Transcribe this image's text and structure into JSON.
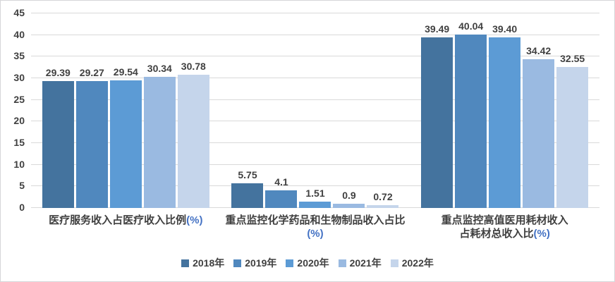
{
  "chart_data": {
    "type": "bar",
    "categories": [
      {
        "text": "医疗服务收入占医疗收入比例",
        "suffix": "(%)",
        "suffix_on_new_line": false
      },
      {
        "text": "重点监控化学药品和生物制品收入占比",
        "suffix": "(%)",
        "suffix_on_new_line": true
      },
      {
        "text": "重点监控高值医用耗材收入\n占耗材总收入比",
        "suffix": "(%)",
        "suffix_on_new_line": false
      }
    ],
    "series": [
      {
        "name": "2018年",
        "color": "#44739E",
        "values": [
          29.39,
          5.75,
          39.49
        ],
        "labels": [
          "29.39",
          "5.75",
          "39.49"
        ]
      },
      {
        "name": "2019年",
        "color": "#5088BE",
        "values": [
          29.27,
          4.1,
          40.04
        ],
        "labels": [
          "29.27",
          "4.1",
          "40.04"
        ]
      },
      {
        "name": "2020年",
        "color": "#5C9BD5",
        "values": [
          29.54,
          1.51,
          39.4
        ],
        "labels": [
          "29.54",
          "1.51",
          "39.40"
        ]
      },
      {
        "name": "2021年",
        "color": "#9ABAE1",
        "values": [
          30.34,
          0.9,
          34.42
        ],
        "labels": [
          "30.34",
          "0.9",
          "34.42"
        ]
      },
      {
        "name": "2022年",
        "color": "#C5D5EB",
        "values": [
          30.78,
          0.72,
          32.55
        ],
        "labels": [
          "30.78",
          "0.72",
          "32.55"
        ]
      }
    ],
    "yticks": [
      0,
      5,
      10,
      15,
      20,
      25,
      30,
      35,
      40,
      45
    ],
    "ylim": [
      0,
      45
    ],
    "grid": true,
    "legend_position": "bottom",
    "colors": {
      "label_text": "#404040",
      "category_suffix": "#4472C4",
      "gridline": "#D9D9D9",
      "border": "#D6D6D8",
      "background": "#FFFFFF"
    }
  }
}
